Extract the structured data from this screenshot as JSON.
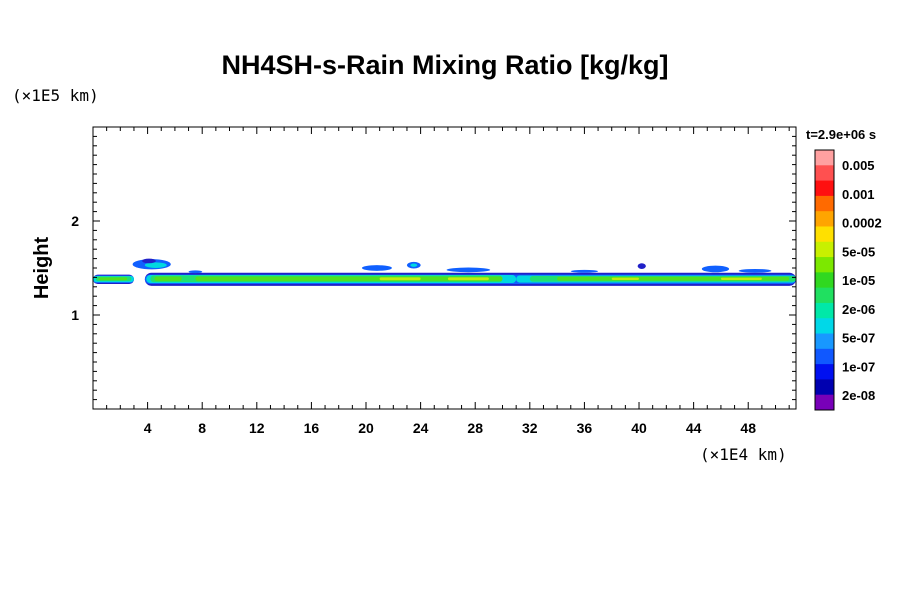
{
  "chart_data": {
    "type": "heatmap",
    "title": "NH4SH-s-Rain Mixing Ratio [kg/kg]",
    "ylabel": "Height",
    "xlabel": "",
    "x_unit": "(×1E4 km)",
    "y_unit": "(×1E5 km)",
    "time_label": "t=2.9e+06 s",
    "xlim": [
      0,
      51.5
    ],
    "ylim": [
      0,
      3.0
    ],
    "x_ticks": [
      4,
      8,
      12,
      16,
      20,
      24,
      28,
      32,
      36,
      40,
      44,
      48
    ],
    "y_ticks": [
      1,
      2
    ],
    "colorbar": {
      "labels": [
        "0.005",
        "0.001",
        "0.0002",
        "5e-05",
        "1e-05",
        "2e-06",
        "5e-07",
        "1e-07",
        "2e-08"
      ],
      "colors_top_to_bottom": [
        "#ffa0a0",
        "#ff5050",
        "#ff1010",
        "#ff6a00",
        "#ffa500",
        "#ffe000",
        "#c8f000",
        "#7ce800",
        "#30d820",
        "#20e060",
        "#00e8a8",
        "#00d8e8",
        "#1898ff",
        "#1058ff",
        "#0010f0",
        "#0000b0",
        "#7800b8"
      ]
    },
    "layers": [
      {
        "name": "outline",
        "color": "#2020c8",
        "segments": [
          [
            0,
            3,
            1.33,
            1.43
          ],
          [
            3.8,
            51.5,
            1.31,
            1.45
          ]
        ]
      },
      {
        "name": "blue",
        "color": "#1060ff",
        "segments": [
          [
            0,
            3,
            1.34,
            1.42
          ],
          [
            3.8,
            51.5,
            1.33,
            1.43
          ]
        ]
      },
      {
        "name": "cyan",
        "color": "#00d8e0",
        "segments": [
          [
            0,
            3,
            1.35,
            1.415
          ],
          [
            3.9,
            31,
            1.34,
            1.425
          ],
          [
            31,
            51.5,
            1.345,
            1.42
          ]
        ]
      },
      {
        "name": "spring-green",
        "color": "#20e070",
        "segments": [
          [
            0.2,
            2.8,
            1.36,
            1.41
          ],
          [
            4.2,
            30,
            1.35,
            1.42
          ],
          [
            32,
            51.5,
            1.355,
            1.415
          ]
        ]
      },
      {
        "name": "green",
        "color": "#50e020",
        "segments": [
          [
            0.4,
            2.5,
            1.37,
            1.4
          ],
          [
            4.5,
            6.5,
            1.36,
            1.41
          ],
          [
            7.5,
            30,
            1.36,
            1.41
          ],
          [
            34,
            51,
            1.365,
            1.405
          ]
        ]
      },
      {
        "name": "yellow-green",
        "color": "#c0ec10",
        "segments": [
          [
            21,
            24,
            1.37,
            1.4
          ],
          [
            26,
            29,
            1.37,
            1.4
          ],
          [
            38,
            40,
            1.372,
            1.398
          ],
          [
            46,
            49,
            1.372,
            1.398
          ]
        ]
      }
    ],
    "blobs": [
      {
        "x": 4.3,
        "y": 1.54,
        "rx": 1.4,
        "ry": 0.055,
        "color": "#1060ff"
      },
      {
        "x": 4.6,
        "y": 1.53,
        "rx": 0.8,
        "ry": 0.03,
        "color": "#00d8e0"
      },
      {
        "x": 4.1,
        "y": 1.575,
        "rx": 0.5,
        "ry": 0.025,
        "color": "#2020c8"
      },
      {
        "x": 20.8,
        "y": 1.5,
        "rx": 1.1,
        "ry": 0.03,
        "color": "#1060ff"
      },
      {
        "x": 23.5,
        "y": 1.53,
        "rx": 0.5,
        "ry": 0.035,
        "color": "#1060ff"
      },
      {
        "x": 23.5,
        "y": 1.53,
        "rx": 0.25,
        "ry": 0.018,
        "color": "#00d8e0"
      },
      {
        "x": 27.5,
        "y": 1.48,
        "rx": 1.6,
        "ry": 0.025,
        "color": "#1060ff"
      },
      {
        "x": 40.2,
        "y": 1.52,
        "rx": 0.3,
        "ry": 0.03,
        "color": "#2020c8"
      },
      {
        "x": 45.6,
        "y": 1.49,
        "rx": 1.0,
        "ry": 0.035,
        "color": "#1060ff"
      },
      {
        "x": 48.5,
        "y": 1.47,
        "rx": 1.2,
        "ry": 0.02,
        "color": "#1060ff"
      },
      {
        "x": 7.5,
        "y": 1.46,
        "rx": 0.5,
        "ry": 0.015,
        "color": "#1060ff"
      },
      {
        "x": 36,
        "y": 1.465,
        "rx": 1.0,
        "ry": 0.015,
        "color": "#1060ff"
      }
    ]
  }
}
